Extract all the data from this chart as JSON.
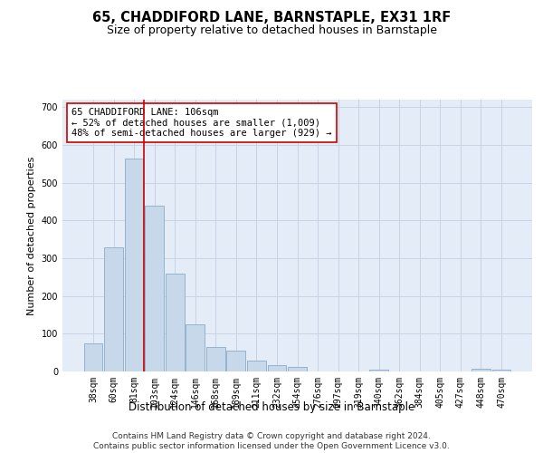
{
  "title": "65, CHADDIFORD LANE, BARNSTAPLE, EX31 1RF",
  "subtitle": "Size of property relative to detached houses in Barnstaple",
  "xlabel": "Distribution of detached houses by size in Barnstaple",
  "ylabel": "Number of detached properties",
  "categories": [
    "38sqm",
    "60sqm",
    "81sqm",
    "103sqm",
    "124sqm",
    "146sqm",
    "168sqm",
    "189sqm",
    "211sqm",
    "232sqm",
    "254sqm",
    "276sqm",
    "297sqm",
    "319sqm",
    "340sqm",
    "362sqm",
    "384sqm",
    "405sqm",
    "427sqm",
    "448sqm",
    "470sqm"
  ],
  "values": [
    75,
    330,
    565,
    440,
    260,
    125,
    65,
    55,
    30,
    17,
    13,
    0,
    0,
    0,
    5,
    0,
    0,
    0,
    0,
    7,
    5
  ],
  "bar_color": "#c8d8eb",
  "bar_edge_color": "#8aacc8",
  "vline_color": "#cc0000",
  "vline_x": 2.5,
  "annotation_text": "65 CHADDIFORD LANE: 106sqm\n← 52% of detached houses are smaller (1,009)\n48% of semi-detached houses are larger (929) →",
  "annotation_box_color": "#ffffff",
  "annotation_box_edge": "#cc0000",
  "grid_color": "#c8d4e4",
  "background_color": "#e4ecf8",
  "ylim": [
    0,
    720
  ],
  "yticks": [
    0,
    100,
    200,
    300,
    400,
    500,
    600,
    700
  ],
  "footer": "Contains HM Land Registry data © Crown copyright and database right 2024.\nContains public sector information licensed under the Open Government Licence v3.0.",
  "title_fontsize": 10.5,
  "subtitle_fontsize": 9,
  "xlabel_fontsize": 8.5,
  "ylabel_fontsize": 8,
  "tick_fontsize": 7,
  "footer_fontsize": 6.5,
  "annot_fontsize": 7.5
}
